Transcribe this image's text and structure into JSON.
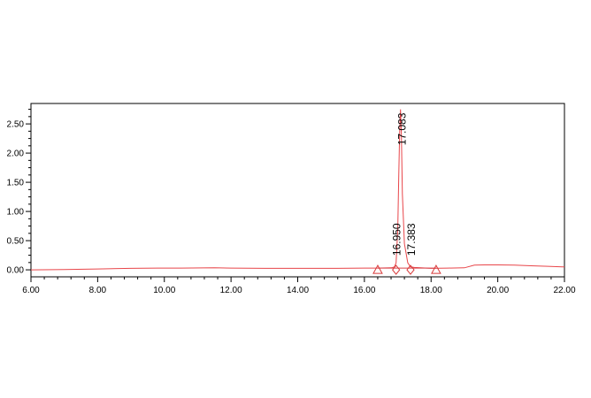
{
  "chart_data": {
    "type": "line",
    "title": "",
    "xlabel": "",
    "ylabel": "",
    "xlim": [
      6.0,
      22.0
    ],
    "ylim": [
      -0.12,
      2.85
    ],
    "x_ticks": [
      6.0,
      8.0,
      10.0,
      12.0,
      14.0,
      16.0,
      18.0,
      20.0,
      22.0
    ],
    "x_tick_labels": [
      "6.00",
      "8.00",
      "10.00",
      "12.00",
      "14.00",
      "16.00",
      "18.00",
      "20.00",
      "22.00"
    ],
    "y_ticks": [
      0.0,
      0.5,
      1.0,
      1.5,
      2.0,
      2.5
    ],
    "y_tick_labels": [
      "0.00",
      "0.50",
      "1.00",
      "1.50",
      "2.00",
      "2.50"
    ],
    "grid": false,
    "series": [
      {
        "x": [
          6.0,
          7.0,
          8.0,
          9.0,
          9.8,
          10.5,
          11.5,
          12.0,
          13.0,
          14.0,
          15.0,
          16.0,
          16.4,
          16.8,
          16.9,
          16.95,
          17.0,
          17.03,
          17.06,
          17.083,
          17.11,
          17.14,
          17.2,
          17.3,
          17.383,
          17.5,
          18.0,
          18.5,
          19.0,
          19.3,
          19.6,
          20.0,
          20.5,
          21.0,
          21.5,
          22.0
        ],
        "values": [
          0.0,
          0.005,
          0.015,
          0.025,
          0.03,
          0.03,
          0.035,
          0.03,
          0.025,
          0.025,
          0.025,
          0.03,
          0.03,
          0.035,
          0.05,
          0.12,
          0.7,
          1.6,
          2.4,
          2.75,
          2.3,
          1.3,
          0.45,
          0.12,
          0.05,
          0.04,
          0.025,
          0.03,
          0.035,
          0.08,
          0.085,
          0.085,
          0.08,
          0.07,
          0.06,
          0.05
        ]
      }
    ],
    "annotations": [
      {
        "text": "17.083",
        "x": 17.083,
        "y": 2.75
      },
      {
        "text": "16.950",
        "x": 16.95,
        "y": 0.03
      },
      {
        "text": "17.383",
        "x": 17.383,
        "y": 0.03
      }
    ],
    "markers": [
      {
        "shape": "triangle",
        "x": 16.4
      },
      {
        "shape": "diamond",
        "x": 16.95
      },
      {
        "shape": "diamond",
        "x": 17.383
      },
      {
        "shape": "triangle",
        "x": 18.15
      }
    ],
    "colors": {
      "trace": "#e8464a",
      "baseline": "#d84048",
      "markers": "#d83a3a",
      "axis": "#000000"
    }
  }
}
